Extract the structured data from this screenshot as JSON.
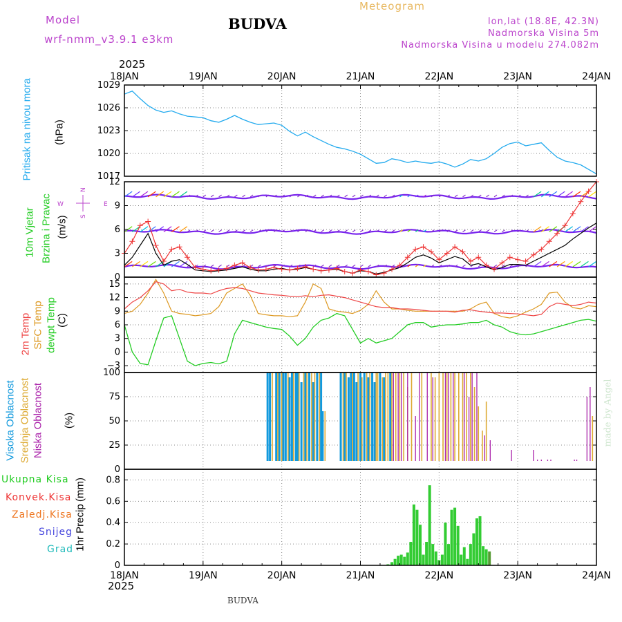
{
  "header": {
    "model_label": "Model",
    "model_value": "wrf-nmm_v3.9.1 e3km",
    "station": "BUDVA",
    "title": "Meteogram",
    "lonlat": "lon,lat (18.8E, 42.3N)",
    "altitude": "Nadmorska Visina 5m",
    "model_altitude": "Nadmorska Visina u modelu 274.082m",
    "watermark": "made by Angel",
    "footer_station": "BUDVA"
  },
  "colors": {
    "pressure": "#22aaee",
    "temp2m": "#ee4444",
    "sfc": "#dd9922",
    "dewpt": "#22cc22",
    "cloud_high": "#1199dd",
    "cloud_mid": "#ddaa33",
    "cloud_low": "#aa22aa",
    "precip": "#33cc33",
    "wind_marker": "#ee3333",
    "wind_line": "#000000",
    "violet": "#bb44cc"
  },
  "chart_data": [
    {
      "type": "line",
      "id": "pressure",
      "title": "Pritisak na nivou mora",
      "ylabel": "(hPa)",
      "ylim": [
        1017,
        1029
      ],
      "yticks": [
        1029,
        1026,
        1023,
        1020,
        1017
      ],
      "x": [
        18.0,
        18.1,
        18.2,
        18.3,
        18.4,
        18.5,
        18.6,
        18.7,
        18.8,
        18.9,
        19.0,
        19.1,
        19.2,
        19.3,
        19.4,
        19.5,
        19.6,
        19.7,
        19.8,
        19.9,
        20.0,
        20.1,
        20.2,
        20.3,
        20.4,
        20.5,
        20.6,
        20.7,
        20.8,
        20.9,
        21.0,
        21.1,
        21.2,
        21.3,
        21.4,
        21.5,
        21.6,
        21.7,
        21.8,
        21.9,
        22.0,
        22.1,
        22.2,
        22.3,
        22.4,
        22.5,
        22.6,
        22.7,
        22.8,
        22.9,
        23.0,
        23.1,
        23.2,
        23.3,
        23.4,
        23.5,
        23.6,
        23.7,
        23.8,
        23.9,
        24.0
      ],
      "values": [
        1027.8,
        1028.2,
        1027.2,
        1026.3,
        1025.7,
        1025.4,
        1025.6,
        1025.2,
        1024.9,
        1024.8,
        1024.7,
        1024.3,
        1024.1,
        1024.5,
        1025.0,
        1024.5,
        1024.1,
        1023.8,
        1023.9,
        1024.0,
        1023.7,
        1022.9,
        1022.3,
        1022.8,
        1022.2,
        1021.7,
        1021.2,
        1020.8,
        1020.6,
        1020.3,
        1019.9,
        1019.3,
        1018.7,
        1018.8,
        1019.3,
        1019.1,
        1018.8,
        1019.0,
        1018.8,
        1018.7,
        1018.9,
        1018.6,
        1018.2,
        1018.6,
        1019.2,
        1019.0,
        1019.3,
        1020.0,
        1020.8,
        1021.3,
        1021.5,
        1021.0,
        1021.2,
        1021.4,
        1020.4,
        1019.5,
        1019.0,
        1018.8,
        1018.5,
        1017.9,
        1017.3
      ]
    },
    {
      "type": "line",
      "id": "wind",
      "title_line1": "10m Vjetar",
      "title_line2": "Brzina i Pravac",
      "ylabel": "(m/s)",
      "compass": {
        "n": "N",
        "s": "S",
        "e": "E",
        "w": "W"
      },
      "ylim": [
        0,
        12
      ],
      "yticks": [
        12,
        9,
        6,
        3,
        0
      ],
      "x": [
        18.0,
        18.1,
        18.2,
        18.3,
        18.4,
        18.5,
        18.6,
        18.7,
        18.8,
        18.9,
        19.0,
        19.1,
        19.2,
        19.3,
        19.4,
        19.5,
        19.6,
        19.7,
        19.8,
        19.9,
        20.0,
        20.1,
        20.2,
        20.3,
        20.4,
        20.5,
        20.6,
        20.7,
        20.8,
        20.9,
        21.0,
        21.1,
        21.2,
        21.3,
        21.4,
        21.5,
        21.6,
        21.7,
        21.8,
        21.9,
        22.0,
        22.1,
        22.2,
        22.3,
        22.4,
        22.5,
        22.6,
        22.7,
        22.8,
        22.9,
        23.0,
        23.1,
        23.2,
        23.3,
        23.4,
        23.5,
        23.6,
        23.7,
        23.8,
        23.9,
        24.0
      ],
      "speed": [
        3.0,
        4.5,
        6.5,
        7.0,
        4.0,
        2.0,
        3.5,
        3.8,
        2.5,
        1.2,
        1.0,
        0.8,
        0.9,
        1.1,
        1.5,
        1.8,
        1.2,
        0.9,
        1.0,
        1.2,
        1.0,
        0.9,
        1.1,
        1.3,
        1.0,
        0.8,
        0.9,
        1.1,
        0.7,
        0.5,
        0.9,
        0.7,
        0.3,
        0.5,
        1.0,
        1.5,
        2.5,
        3.5,
        3.8,
        3.2,
        2.2,
        3.0,
        3.8,
        3.2,
        2.0,
        2.5,
        1.5,
        1.0,
        1.8,
        2.5,
        2.2,
        2.0,
        2.8,
        3.5,
        4.5,
        5.5,
        6.5,
        8.0,
        9.5,
        10.8,
        12.0
      ],
      "gust": [
        1.5,
        2.5,
        4.0,
        5.5,
        3.0,
        1.5,
        2.0,
        2.2,
        1.6,
        0.9,
        0.8,
        0.7,
        0.8,
        0.9,
        1.1,
        1.3,
        1.0,
        0.8,
        0.8,
        1.0,
        1.1,
        0.9,
        1.0,
        1.2,
        1.0,
        0.8,
        0.9,
        1.0,
        0.7,
        0.5,
        0.8,
        0.7,
        0.4,
        0.6,
        0.9,
        1.2,
        1.8,
        2.5,
        2.8,
        2.4,
        1.8,
        2.2,
        2.6,
        2.3,
        1.5,
        1.7,
        1.3,
        0.9,
        1.2,
        1.6,
        1.6,
        1.5,
        2.0,
        2.5,
        3.0,
        3.5,
        4.0,
        4.8,
        5.5,
        6.2,
        6.8
      ]
    },
    {
      "type": "line",
      "id": "temperature",
      "title_2m": "2m Temp",
      "title_sfc": "SFC Temp",
      "title_dewpt": "dewpt Temp",
      "ylabel": "(C)",
      "ylim": [
        -4.5,
        16.5
      ],
      "yticks": [
        15,
        12,
        9,
        6,
        3,
        0,
        -3
      ],
      "x": [
        18.0,
        18.1,
        18.2,
        18.3,
        18.4,
        18.5,
        18.6,
        18.7,
        18.8,
        18.9,
        19.0,
        19.1,
        19.2,
        19.3,
        19.4,
        19.5,
        19.6,
        19.7,
        19.8,
        19.9,
        20.0,
        20.1,
        20.2,
        20.3,
        20.4,
        20.5,
        20.6,
        20.7,
        20.8,
        20.9,
        21.0,
        21.1,
        21.2,
        21.3,
        21.4,
        21.5,
        21.6,
        21.7,
        21.8,
        21.9,
        22.0,
        22.1,
        22.2,
        22.3,
        22.4,
        22.5,
        22.6,
        22.7,
        22.8,
        22.9,
        23.0,
        23.1,
        23.2,
        23.3,
        23.4,
        23.5,
        23.6,
        23.7,
        23.8,
        23.9,
        24.0
      ],
      "temp2m": [
        9.5,
        11.0,
        12.0,
        13.5,
        15.5,
        15.0,
        13.5,
        13.8,
        13.2,
        13.0,
        13.0,
        12.8,
        13.5,
        14.0,
        14.2,
        14.0,
        13.5,
        13.0,
        12.8,
        12.6,
        12.5,
        12.3,
        12.2,
        12.4,
        12.2,
        12.5,
        12.6,
        12.3,
        12.0,
        11.5,
        11.0,
        10.5,
        10.0,
        9.8,
        9.8,
        9.5,
        9.5,
        9.4,
        9.2,
        9.0,
        9.0,
        9.0,
        8.8,
        9.2,
        9.3,
        9.0,
        8.8,
        8.6,
        8.6,
        8.5,
        8.4,
        8.2,
        8.0,
        8.3,
        10.0,
        10.8,
        10.5,
        10.2,
        10.5,
        11.0,
        10.8
      ],
      "sfc": [
        8.5,
        9.0,
        10.5,
        13.0,
        16.0,
        13.0,
        9.0,
        8.5,
        8.3,
        8.0,
        8.2,
        8.5,
        10.0,
        13.0,
        14.0,
        15.0,
        12.5,
        8.5,
        8.2,
        8.0,
        8.0,
        7.8,
        8.0,
        11.0,
        15.0,
        14.0,
        9.5,
        9.0,
        8.8,
        8.5,
        9.2,
        10.5,
        13.5,
        11.0,
        9.5,
        9.5,
        9.2,
        9.0,
        9.0,
        9.0,
        9.0,
        9.0,
        9.0,
        9.0,
        9.5,
        10.5,
        11.0,
        8.5,
        7.8,
        7.5,
        8.0,
        8.8,
        9.5,
        10.5,
        13.0,
        13.2,
        11.0,
        9.8,
        9.5,
        10.2,
        10.0
      ],
      "dewpt": [
        6.0,
        0.0,
        -2.5,
        -2.8,
        2.5,
        7.5,
        8.0,
        3.0,
        -2.0,
        -3.0,
        -2.5,
        -2.3,
        -2.6,
        -2.0,
        4.0,
        7.0,
        6.5,
        6.0,
        5.5,
        5.2,
        5.0,
        3.5,
        1.5,
        3.0,
        5.5,
        7.0,
        7.5,
        8.5,
        8.0,
        5.0,
        2.0,
        3.0,
        2.0,
        2.5,
        3.0,
        4.5,
        6.0,
        6.5,
        6.5,
        5.5,
        5.8,
        6.0,
        6.0,
        6.2,
        6.5,
        6.5,
        7.0,
        6.0,
        5.5,
        4.5,
        4.0,
        3.8,
        4.0,
        4.5,
        5.0,
        5.5,
        6.0,
        6.5,
        7.0,
        7.2,
        6.8
      ]
    },
    {
      "type": "bar",
      "id": "cloud",
      "title_high": "Visoka Oblacnost",
      "title_mid": "Srednja Oblacnost",
      "title_low": "Niska Oblacnost",
      "ylabel": "(%)",
      "ylim": [
        0,
        100
      ],
      "yticks": [
        100,
        75,
        50,
        25,
        0
      ],
      "series": [
        {
          "name": "high",
          "x": [
            19.82,
            19.85,
            19.9,
            19.93,
            19.97,
            20.02,
            20.05,
            20.1,
            20.13,
            20.18,
            20.2,
            20.25,
            20.3,
            20.35,
            20.4,
            20.45,
            20.5,
            20.52,
            20.72,
            20.75,
            20.8,
            20.85,
            20.88,
            20.92,
            20.95,
            21.0,
            21.05,
            21.1,
            21.15,
            21.18,
            21.25,
            21.3,
            21.38
          ],
          "values": [
            100,
            100,
            5,
            100,
            100,
            100,
            100,
            95,
            100,
            100,
            100,
            90,
            100,
            100,
            90,
            100,
            100,
            60,
            5,
            100,
            100,
            95,
            100,
            100,
            90,
            100,
            100,
            95,
            100,
            90,
            100,
            95,
            100
          ]
        },
        {
          "name": "mid",
          "x": [
            19.88,
            19.95,
            20.0,
            20.08,
            20.15,
            20.22,
            20.28,
            20.32,
            20.38,
            20.42,
            20.48,
            20.55,
            20.78,
            20.82,
            20.9,
            20.97,
            21.02,
            21.08,
            21.12,
            21.2,
            21.22,
            21.28,
            21.32,
            21.35,
            21.4,
            21.45,
            21.5,
            21.55,
            21.6,
            21.65,
            21.78,
            21.9,
            21.95,
            22.0,
            22.05,
            22.1,
            22.15,
            22.2,
            22.25,
            22.3,
            22.35,
            22.4,
            22.45,
            22.5,
            22.55,
            22.6,
            23.95
          ],
          "values": [
            100,
            100,
            100,
            100,
            100,
            100,
            100,
            100,
            100,
            100,
            100,
            60,
            100,
            100,
            100,
            100,
            95,
            100,
            100,
            100,
            100,
            95,
            100,
            100,
            100,
            100,
            100,
            100,
            85,
            100,
            100,
            100,
            95,
            100,
            100,
            100,
            100,
            100,
            100,
            100,
            100,
            100,
            85,
            65,
            40,
            70,
            55
          ]
        },
        {
          "name": "low",
          "x": [
            21.42,
            21.48,
            21.52,
            21.6,
            21.7,
            21.75,
            21.85,
            21.92,
            22.08,
            22.12,
            22.18,
            22.32,
            22.38,
            22.42,
            22.48,
            22.58,
            22.65,
            22.92,
            23.2,
            23.25,
            23.3,
            23.38,
            23.42,
            23.72,
            23.75,
            23.88,
            23.92
          ],
          "values": [
            100,
            100,
            100,
            100,
            55,
            100,
            100,
            95,
            100,
            100,
            100,
            100,
            75,
            100,
            100,
            35,
            30,
            20,
            20,
            10,
            10,
            10,
            10,
            10,
            10,
            75,
            85
          ]
        }
      ]
    },
    {
      "type": "bar",
      "id": "precip",
      "title": "1hr Precip",
      "ylabel": "(mm)",
      "legend_total": "Ukupna Kisa",
      "legend_conv": "Konvek.Kisa",
      "legend_frz": "Zaledj.Kisa",
      "legend_snow": "Snijeg",
      "legend_graup": "Grad",
      "ylim": [
        0,
        0.9
      ],
      "yticks": [
        0.8,
        0.6,
        0.4,
        0.2,
        0
      ],
      "x": [
        21.35,
        21.4,
        21.44,
        21.48,
        21.52,
        21.56,
        21.6,
        21.64,
        21.68,
        21.72,
        21.76,
        21.8,
        21.84,
        21.88,
        21.92,
        21.96,
        22.0,
        22.04,
        22.08,
        22.12,
        22.16,
        22.2,
        22.24,
        22.28,
        22.32,
        22.36,
        22.4,
        22.44,
        22.48,
        22.52,
        22.56,
        22.6,
        22.64
      ],
      "values": [
        0.01,
        0.03,
        0.06,
        0.09,
        0.1,
        0.08,
        0.12,
        0.22,
        0.57,
        0.52,
        0.38,
        0.1,
        0.22,
        0.75,
        0.2,
        0.13,
        0.05,
        0.1,
        0.4,
        0.2,
        0.52,
        0.54,
        0.37,
        0.1,
        0.17,
        0.06,
        0.2,
        0.3,
        0.44,
        0.46,
        0.18,
        0.15,
        0.13
      ]
    },
    {
      "type": "axis",
      "id": "time_axis",
      "year": "2025",
      "tick_labels": [
        "18JAN",
        "19JAN",
        "20JAN",
        "21JAN",
        "22JAN",
        "23JAN",
        "24JAN"
      ],
      "range": [
        18,
        24
      ]
    }
  ]
}
